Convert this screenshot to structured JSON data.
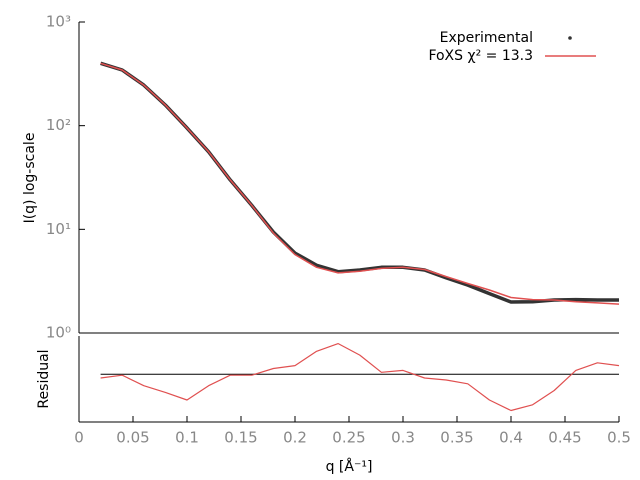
{
  "chart_data": [
    {
      "type": "line",
      "log_y": true,
      "legend": "top-right",
      "ylabel": "I(q) log-scale",
      "xlim": [
        0,
        0.5
      ],
      "ylim": [
        1,
        1000
      ],
      "yticks": [
        {
          "value": 1,
          "label": "10⁰"
        },
        {
          "value": 10,
          "label": "10¹"
        },
        {
          "value": 100,
          "label": "10²"
        },
        {
          "value": 1000,
          "label": "10³"
        }
      ],
      "x": [
        0.02,
        0.04,
        0.06,
        0.08,
        0.1,
        0.12,
        0.14,
        0.16,
        0.18,
        0.2,
        0.22,
        0.24,
        0.26,
        0.28,
        0.3,
        0.32,
        0.34,
        0.36,
        0.38,
        0.4,
        0.42,
        0.44,
        0.46,
        0.48,
        0.5
      ],
      "series": [
        {
          "name": "Experimental",
          "color": "#333333",
          "values": [
            400,
            344,
            246,
            158,
            95,
            56,
            30,
            17,
            9.4,
            5.9,
            4.5,
            3.9,
            4.05,
            4.3,
            4.3,
            4.05,
            3.4,
            2.9,
            2.4,
            1.99,
            2.0,
            2.08,
            2.1,
            2.08,
            2.08
          ]
        },
        {
          "name": "FoXS χ² = 13.3",
          "color": "#e05050",
          "values": [
            400,
            344,
            246,
            158,
            95,
            56,
            30,
            17,
            9.2,
            5.7,
            4.3,
            3.8,
            3.95,
            4.2,
            4.3,
            4.1,
            3.5,
            3.0,
            2.6,
            2.2,
            2.1,
            2.08,
            2.0,
            1.95,
            1.9
          ]
        }
      ]
    },
    {
      "type": "line",
      "ylabel": "Residual",
      "xlabel": "q [Å⁻¹]",
      "xlim": [
        0,
        0.5
      ],
      "xticks": [
        0,
        0.05,
        0.1,
        0.15,
        0.2,
        0.25,
        0.3,
        0.35,
        0.4,
        0.45,
        0.5
      ],
      "ylim": [
        -2.5,
        2
      ],
      "hline": 0,
      "x": [
        0.02,
        0.04,
        0.06,
        0.08,
        0.1,
        0.12,
        0.14,
        0.16,
        0.18,
        0.2,
        0.22,
        0.24,
        0.26,
        0.28,
        0.3,
        0.32,
        0.34,
        0.36,
        0.38,
        0.4,
        0.42,
        0.44,
        0.46,
        0.48,
        0.5
      ],
      "color": "#e05050",
      "values": [
        -0.2,
        -0.05,
        -0.6,
        -0.95,
        -1.35,
        -0.6,
        -0.05,
        -0.05,
        0.3,
        0.45,
        1.2,
        1.6,
        1.0,
        0.1,
        0.2,
        -0.2,
        -0.3,
        -0.5,
        -1.35,
        -1.9,
        -1.6,
        -0.85,
        0.2,
        0.6,
        0.45
      ]
    }
  ]
}
